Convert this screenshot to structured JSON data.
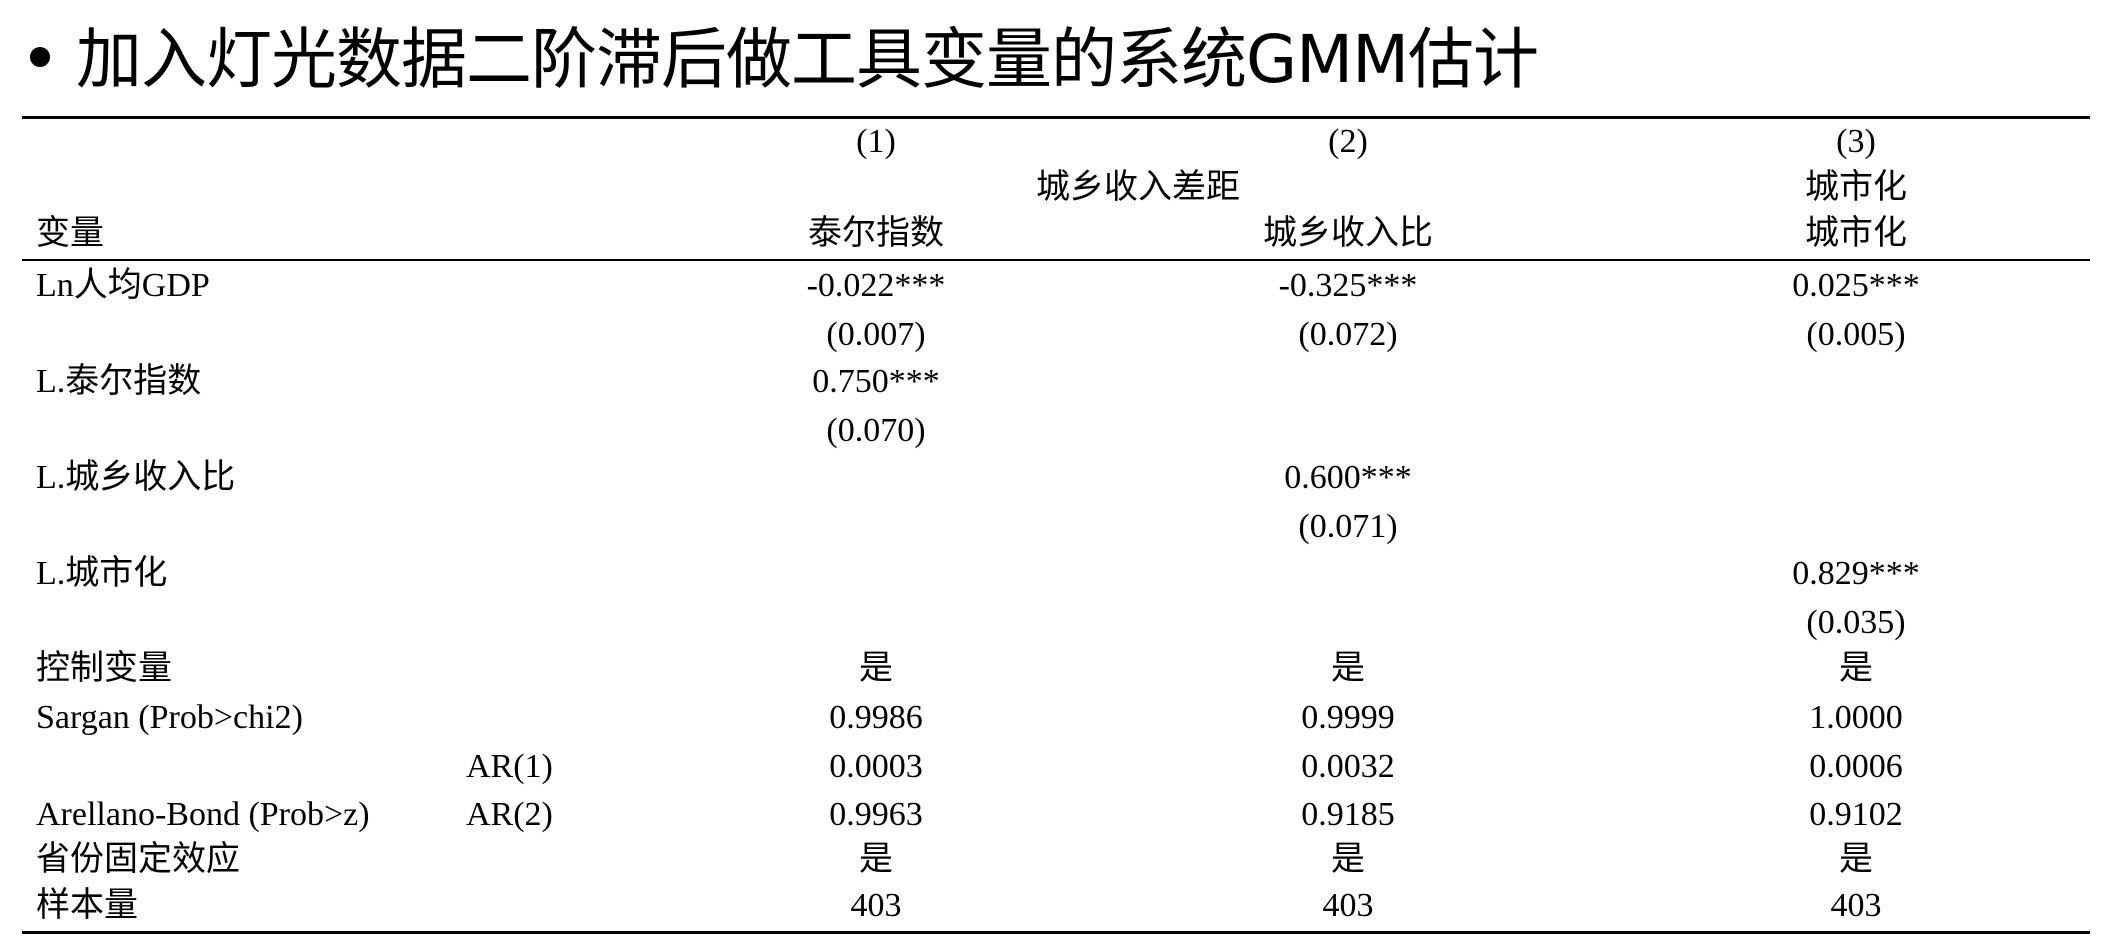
{
  "title": "加入灯光数据二阶滞后做工具变量的系统GMM估计",
  "header": {
    "col_numbers": [
      "(1)",
      "(2)",
      "(3)"
    ],
    "group_label_12": "城乡收入差距",
    "group_label_3": "城市化",
    "variable_label": "变量",
    "dep_vars": [
      "泰尔指数",
      "城乡收入比",
      "城市化"
    ]
  },
  "rows": {
    "ln_gdp": {
      "label": "Ln人均GDP",
      "coefs": [
        "-0.022***",
        "-0.325***",
        "0.025***"
      ],
      "ses": [
        "(0.007)",
        "(0.072)",
        "(0.005)"
      ]
    },
    "l_theil": {
      "label": "L.泰尔指数",
      "coef": "0.750***",
      "se": "(0.070)"
    },
    "l_ratio": {
      "label": "L.城乡收入比",
      "coef": "0.600***",
      "se": "(0.071)"
    },
    "l_urban": {
      "label": "L.城市化",
      "coef": "0.829***",
      "se": "(0.035)"
    },
    "controls": {
      "label": "控制变量",
      "values": [
        "是",
        "是",
        "是"
      ]
    },
    "sargan": {
      "label": "Sargan (Prob>chi2)",
      "values": [
        "0.9986",
        "0.9999",
        "1.0000"
      ]
    },
    "ar1": {
      "sub_label": "AR(1)",
      "values": [
        "0.0003",
        "0.0032",
        "0.0006"
      ]
    },
    "ar2": {
      "label": "Arellano-Bond (Prob>z)",
      "sub_label": "AR(2)",
      "values": [
        "0.9963",
        "0.9185",
        "0.9102"
      ]
    },
    "province_fe": {
      "label": "省份固定效应",
      "values": [
        "是",
        "是",
        "是"
      ]
    },
    "n": {
      "label": "样本量",
      "values": [
        "403",
        "403",
        "403"
      ]
    }
  }
}
